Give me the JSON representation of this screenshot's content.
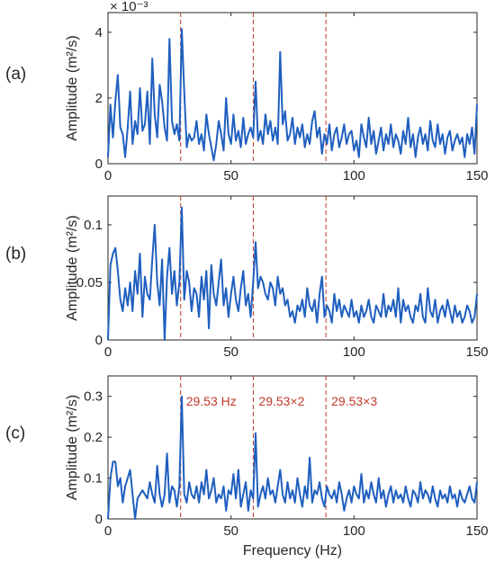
{
  "chart_data": [
    {
      "type": "line",
      "panel_label": "(a)",
      "ylabel": "Amplitude (m²/s)",
      "xlabel": "",
      "exponent": "× 10⁻³",
      "xlim": [
        0,
        150
      ],
      "ylim": [
        0,
        4.6
      ],
      "xticks": [
        "0",
        "50",
        "100",
        "150"
      ],
      "yticks": [
        "0",
        "2",
        "4"
      ],
      "ytick_values": [
        0,
        2,
        4
      ],
      "grid": false,
      "series": [
        {
          "color": "#1f5fbf",
          "x": [
            0,
            1,
            2,
            3,
            4,
            5,
            6,
            7,
            8,
            9,
            10,
            11,
            12,
            13,
            14,
            15,
            16,
            17,
            18,
            19,
            20,
            21,
            22,
            23,
            24,
            25,
            26,
            27,
            28,
            29,
            30,
            31,
            32,
            33,
            34,
            35,
            36,
            37,
            38,
            39,
            40,
            41,
            42,
            43,
            44,
            45,
            46,
            47,
            48,
            49,
            50,
            51,
            52,
            53,
            54,
            55,
            56,
            57,
            58,
            59,
            60,
            61,
            62,
            63,
            64,
            65,
            66,
            67,
            68,
            69,
            70,
            71,
            72,
            73,
            74,
            75,
            76,
            77,
            78,
            79,
            80,
            81,
            82,
            83,
            84,
            85,
            86,
            87,
            88,
            89,
            90,
            91,
            92,
            93,
            94,
            95,
            96,
            97,
            98,
            99,
            100,
            101,
            102,
            103,
            104,
            105,
            106,
            107,
            108,
            109,
            110,
            111,
            112,
            113,
            114,
            115,
            116,
            117,
            118,
            119,
            120,
            121,
            122,
            123,
            124,
            125,
            126,
            127,
            128,
            129,
            130,
            131,
            132,
            133,
            134,
            135,
            136,
            137,
            138,
            139,
            140,
            141,
            142,
            143,
            144,
            145,
            146,
            147,
            148,
            149,
            150
          ],
          "y": [
            0.2,
            1.8,
            0.8,
            1.9,
            2.7,
            1.1,
            0.9,
            0.2,
            1.1,
            2.2,
            0.6,
            1.3,
            0.9,
            2.3,
            1.0,
            1.2,
            2.2,
            0.6,
            3.2,
            1.5,
            0.8,
            2.4,
            1.9,
            1.1,
            0.7,
            3.8,
            1.3,
            0.9,
            1.2,
            0.7,
            4.1,
            2.2,
            0.5,
            0.9,
            0.7,
            0.8,
            1.3,
            0.6,
            0.9,
            0.4,
            1.5,
            0.9,
            0.5,
            0.1,
            0.6,
            1.3,
            0.9,
            0.4,
            2.0,
            0.9,
            0.6,
            1.5,
            0.7,
            1.0,
            0.5,
            1.4,
            0.6,
            0.9,
            1.1,
            0.8,
            2.5,
            0.7,
            1.0,
            0.6,
            1.5,
            0.9,
            1.3,
            0.7,
            1.1,
            0.6,
            3.4,
            1.2,
            1.6,
            0.7,
            0.9,
            1.4,
            0.6,
            1.1,
            0.8,
            1.2,
            0.5,
            0.9,
            0.6,
            1.3,
            1.6,
            0.8,
            1.1,
            0.3,
            0.9,
            0.6,
            1.2,
            0.4,
            0.9,
            1.1,
            0.5,
            0.8,
            1.2,
            0.6,
            0.9,
            1.0,
            0.4,
            0.7,
            0.2,
            1.2,
            0.8,
            0.5,
            1.4,
            0.6,
            1.0,
            0.3,
            0.7,
            1.1,
            0.4,
            0.9,
            0.6,
            1.2,
            0.5,
            0.9,
            0.7,
            0.3,
            1.0,
            0.6,
            1.4,
            0.5,
            0.9,
            0.2,
            0.8,
            1.1,
            0.6,
            0.9,
            0.4,
            1.3,
            0.7,
            0.5,
            1.2,
            0.6,
            0.9,
            0.3,
            0.8,
            1.0,
            0.4,
            0.7,
            0.9,
            0.6,
            0.8,
            0.2,
            0.9,
            0.6,
            1.1,
            0.3,
            1.8
          ]
        }
      ],
      "markers": [
        29.53,
        59.06,
        88.59
      ],
      "marker_color": "#c0392b"
    },
    {
      "type": "line",
      "panel_label": "(b)",
      "ylabel": "Amplitude (m²/s)",
      "xlabel": "",
      "xlim": [
        0,
        150
      ],
      "ylim": [
        0,
        0.125
      ],
      "xticks": [
        "0",
        "50",
        "100",
        "150"
      ],
      "yticks": [
        "0",
        "0.05",
        "0.1"
      ],
      "ytick_values": [
        0,
        0.05,
        0.1
      ],
      "grid": false,
      "series": [
        {
          "color": "#1f5fbf",
          "x": [
            0,
            1,
            2,
            3,
            4,
            5,
            6,
            7,
            8,
            9,
            10,
            11,
            12,
            13,
            14,
            15,
            16,
            17,
            18,
            19,
            20,
            21,
            22,
            23,
            24,
            25,
            26,
            27,
            28,
            29,
            30,
            31,
            32,
            33,
            34,
            35,
            36,
            37,
            38,
            39,
            40,
            41,
            42,
            43,
            44,
            45,
            46,
            47,
            48,
            49,
            50,
            51,
            52,
            53,
            54,
            55,
            56,
            57,
            58,
            59,
            60,
            61,
            62,
            63,
            64,
            65,
            66,
            67,
            68,
            69,
            70,
            71,
            72,
            73,
            74,
            75,
            76,
            77,
            78,
            79,
            80,
            81,
            82,
            83,
            84,
            85,
            86,
            87,
            88,
            89,
            90,
            91,
            92,
            93,
            94,
            95,
            96,
            97,
            98,
            99,
            100,
            101,
            102,
            103,
            104,
            105,
            106,
            107,
            108,
            109,
            110,
            111,
            112,
            113,
            114,
            115,
            116,
            117,
            118,
            119,
            120,
            121,
            122,
            123,
            124,
            125,
            126,
            127,
            128,
            129,
            130,
            131,
            132,
            133,
            134,
            135,
            136,
            137,
            138,
            139,
            140,
            141,
            142,
            143,
            144,
            145,
            146,
            147,
            148,
            149,
            150
          ],
          "y": [
            0.0,
            0.065,
            0.075,
            0.08,
            0.06,
            0.035,
            0.025,
            0.045,
            0.03,
            0.05,
            0.025,
            0.06,
            0.04,
            0.075,
            0.02,
            0.055,
            0.04,
            0.035,
            0.07,
            0.1,
            0.05,
            0.03,
            0.07,
            0.0,
            0.055,
            0.08,
            0.04,
            0.06,
            0.03,
            0.05,
            0.115,
            0.035,
            0.06,
            0.05,
            0.025,
            0.045,
            0.04,
            0.02,
            0.055,
            0.035,
            0.06,
            0.01,
            0.065,
            0.04,
            0.03,
            0.05,
            0.07,
            0.03,
            0.045,
            0.02,
            0.04,
            0.055,
            0.035,
            0.025,
            0.045,
            0.06,
            0.03,
            0.04,
            0.02,
            0.05,
            0.085,
            0.045,
            0.055,
            0.05,
            0.04,
            0.035,
            0.05,
            0.045,
            0.03,
            0.055,
            0.04,
            0.045,
            0.03,
            0.035,
            0.02,
            0.025,
            0.015,
            0.03,
            0.025,
            0.035,
            0.02,
            0.045,
            0.03,
            0.025,
            0.035,
            0.015,
            0.04,
            0.055,
            0.02,
            0.03,
            0.025,
            0.015,
            0.04,
            0.025,
            0.035,
            0.02,
            0.03,
            0.025,
            0.02,
            0.035,
            0.02,
            0.025,
            0.015,
            0.03,
            0.02,
            0.025,
            0.035,
            0.02,
            0.015,
            0.03,
            0.025,
            0.02,
            0.04,
            0.02,
            0.03,
            0.025,
            0.035,
            0.02,
            0.045,
            0.015,
            0.035,
            0.025,
            0.03,
            0.02,
            0.015,
            0.03,
            0.025,
            0.04,
            0.02,
            0.015,
            0.045,
            0.025,
            0.02,
            0.035,
            0.015,
            0.025,
            0.03,
            0.02,
            0.035,
            0.025,
            0.015,
            0.03,
            0.02,
            0.025,
            0.015,
            0.02,
            0.03,
            0.025,
            0.015,
            0.02,
            0.04
          ]
        }
      ],
      "markers": [
        29.53,
        59.06,
        88.59
      ],
      "marker_color": "#c0392b"
    },
    {
      "type": "line",
      "panel_label": "(c)",
      "ylabel": "Amplitude (m²/s)",
      "xlabel": "Frequency (Hz)",
      "xlim": [
        0,
        150
      ],
      "ylim": [
        0,
        0.35
      ],
      "xticks": [
        "0",
        "50",
        "100",
        "150"
      ],
      "yticks": [
        "0",
        "0.1",
        "0.2",
        "0.3"
      ],
      "ytick_values": [
        0,
        0.1,
        0.2,
        0.3
      ],
      "grid": false,
      "series": [
        {
          "color": "#1f5fbf",
          "x": [
            0,
            1,
            2,
            3,
            4,
            5,
            6,
            7,
            8,
            9,
            10,
            11,
            12,
            13,
            14,
            15,
            16,
            17,
            18,
            19,
            20,
            21,
            22,
            23,
            24,
            25,
            26,
            27,
            28,
            29,
            30,
            31,
            32,
            33,
            34,
            35,
            36,
            37,
            38,
            39,
            40,
            41,
            42,
            43,
            44,
            45,
            46,
            47,
            48,
            49,
            50,
            51,
            52,
            53,
            54,
            55,
            56,
            57,
            58,
            59,
            60,
            61,
            62,
            63,
            64,
            65,
            66,
            67,
            68,
            69,
            70,
            71,
            72,
            73,
            74,
            75,
            76,
            77,
            78,
            79,
            80,
            81,
            82,
            83,
            84,
            85,
            86,
            87,
            88,
            89,
            90,
            91,
            92,
            93,
            94,
            95,
            96,
            97,
            98,
            99,
            100,
            101,
            102,
            103,
            104,
            105,
            106,
            107,
            108,
            109,
            110,
            111,
            112,
            113,
            114,
            115,
            116,
            117,
            118,
            119,
            120,
            121,
            122,
            123,
            124,
            125,
            126,
            127,
            128,
            129,
            130,
            131,
            132,
            133,
            134,
            135,
            136,
            137,
            138,
            139,
            140,
            141,
            142,
            143,
            144,
            145,
            146,
            147,
            148,
            149,
            150
          ],
          "y": [
            0.0,
            0.1,
            0.14,
            0.14,
            0.08,
            0.1,
            0.04,
            0.08,
            0.1,
            0.12,
            0.06,
            0.0,
            0.05,
            0.06,
            0.07,
            0.06,
            0.05,
            0.09,
            0.06,
            0.04,
            0.13,
            0.06,
            0.03,
            0.06,
            0.16,
            0.04,
            0.08,
            0.07,
            0.03,
            0.08,
            0.3,
            0.06,
            0.04,
            0.09,
            0.06,
            0.05,
            0.08,
            0.04,
            0.09,
            0.06,
            0.12,
            0.05,
            0.07,
            0.1,
            0.04,
            0.06,
            0.05,
            0.08,
            0.02,
            0.07,
            0.06,
            0.11,
            0.05,
            0.12,
            0.03,
            0.06,
            0.09,
            0.02,
            0.07,
            0.05,
            0.21,
            0.03,
            0.06,
            0.08,
            0.05,
            0.1,
            0.06,
            0.07,
            0.04,
            0.08,
            0.12,
            0.06,
            0.04,
            0.09,
            0.05,
            0.07,
            0.04,
            0.1,
            0.06,
            0.03,
            0.08,
            0.05,
            0.15,
            0.04,
            0.07,
            0.06,
            0.09,
            0.05,
            0.03,
            0.08,
            0.06,
            0.05,
            0.07,
            0.04,
            0.09,
            0.06,
            0.02,
            0.05,
            0.07,
            0.04,
            0.08,
            0.06,
            0.05,
            0.11,
            0.04,
            0.07,
            0.05,
            0.09,
            0.06,
            0.04,
            0.1,
            0.05,
            0.07,
            0.03,
            0.06,
            0.08,
            0.04,
            0.07,
            0.05,
            0.06,
            0.04,
            0.08,
            0.05,
            0.03,
            0.07,
            0.06,
            0.04,
            0.09,
            0.05,
            0.07,
            0.06,
            0.04,
            0.08,
            0.05,
            0.03,
            0.07,
            0.05,
            0.06,
            0.04,
            0.08,
            0.05,
            0.06,
            0.03,
            0.07,
            0.05,
            0.04,
            0.06,
            0.08,
            0.05,
            0.04,
            0.09
          ]
        }
      ],
      "markers": [
        29.53,
        59.06,
        88.59
      ],
      "marker_color": "#c0392b",
      "annotations": [
        "29.53 Hz",
        "29.53×2",
        "29.53×3"
      ]
    }
  ]
}
